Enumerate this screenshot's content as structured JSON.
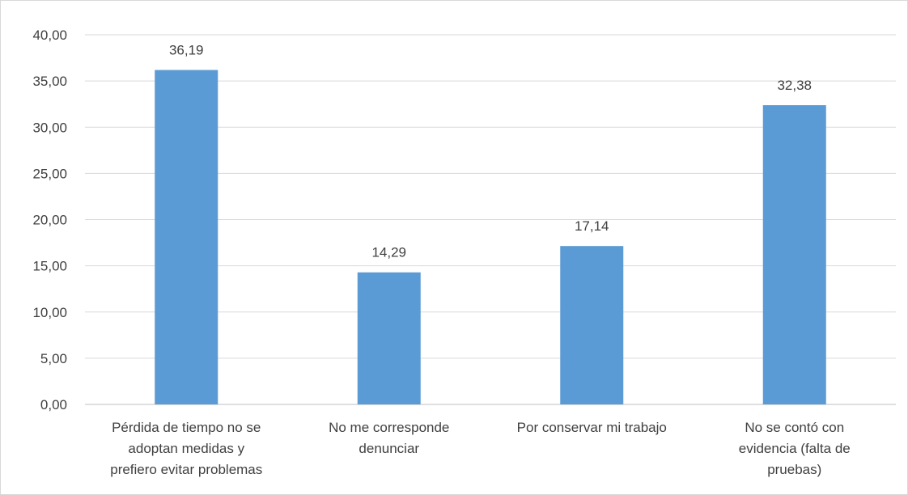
{
  "chart_data": {
    "type": "bar",
    "categories": [
      [
        "Pérdida de tiempo no se",
        "adoptan medidas y",
        "prefiero evitar problemas"
      ],
      [
        "No me corresponde",
        "denunciar"
      ],
      [
        "Por conservar mi trabajo"
      ],
      [
        "No se contó con",
        "evidencia (falta de",
        "pruebas)"
      ]
    ],
    "values": [
      36.19,
      14.29,
      17.14,
      32.38
    ],
    "value_labels": [
      "36,19",
      "14,29",
      "17,14",
      "32,38"
    ],
    "y_ticks": [
      "0,00",
      "5,00",
      "10,00",
      "15,00",
      "20,00",
      "25,00",
      "30,00",
      "35,00",
      "40,00"
    ],
    "ylim": [
      0,
      40
    ],
    "grid": true,
    "legend": "none",
    "title": "",
    "xlabel": "",
    "ylabel": "",
    "colors": {
      "bar": "#5b9bd5",
      "grid": "#d9d9d9",
      "axis": "#bfbfbf",
      "text": "#404040"
    }
  }
}
